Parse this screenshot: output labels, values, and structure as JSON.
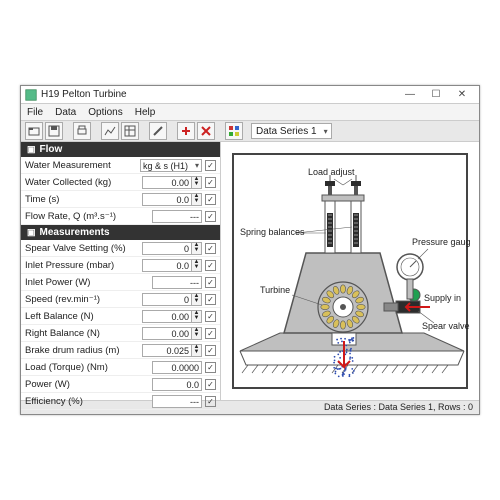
{
  "window": {
    "title": "H19 Pelton Turbine",
    "buttons": {
      "min": "—",
      "max": "☐",
      "close": "✕"
    }
  },
  "menubar": {
    "items": [
      "File",
      "Data",
      "Options",
      "Help"
    ]
  },
  "toolbar": {
    "series_label": "Data Series 1"
  },
  "flow": {
    "title": "Flow",
    "rows": [
      {
        "label": "Water Measurement",
        "type": "select",
        "value": "kg & s (H1)"
      },
      {
        "label": "Water Collected (kg)",
        "type": "spin",
        "value": "0.00"
      },
      {
        "label": "Time (s)",
        "type": "spin",
        "value": "0.0"
      },
      {
        "label": "Flow Rate, Q  (m³.s⁻¹)",
        "type": "readonly",
        "value": "---"
      }
    ]
  },
  "measurements": {
    "title": "Measurements",
    "rows": [
      {
        "label": "Spear Valve Setting (%)",
        "type": "spin",
        "value": "0"
      },
      {
        "label": "Inlet Pressure (mbar)",
        "type": "spin",
        "value": "0.0"
      },
      {
        "label": "Inlet Power (W)",
        "type": "readonly",
        "value": "---"
      },
      {
        "label": "Speed (rev.min⁻¹)",
        "type": "spin",
        "value": "0"
      },
      {
        "label": "Left Balance (N)",
        "type": "spin",
        "value": "0.00"
      },
      {
        "label": "Right Balance (N)",
        "type": "spin",
        "value": "0.00"
      },
      {
        "label": "Brake drum radius (m)",
        "type": "spin",
        "value": "0.025"
      },
      {
        "label": "Load (Torque) (Nm)",
        "type": "readonly",
        "value": "0.0000"
      },
      {
        "label": "Power (W)",
        "type": "readonly",
        "value": "0.0"
      },
      {
        "label": "Efficiency  (%)",
        "type": "readonly",
        "value": "---"
      }
    ]
  },
  "diagram": {
    "labels": {
      "load_adjust": "Load adjust",
      "spring_balances": "Spring balances",
      "pressure_gauge": "Pressure gauge",
      "turbine": "Turbine",
      "supply_in": "Supply in",
      "spear_valve": "Spear valve"
    },
    "colors": {
      "outline": "#555555",
      "housing_fill": "#bfbfbf",
      "dark_fill": "#2c2c2c",
      "gauge_fill": "#ffffff",
      "bucket": "#d9c05a",
      "water": "#2f4db0",
      "arrow": "#d01818",
      "floor": "#bfbfbf"
    }
  },
  "statusbar": {
    "text": "Data Series : Data Series 1,  Rows : 0"
  }
}
